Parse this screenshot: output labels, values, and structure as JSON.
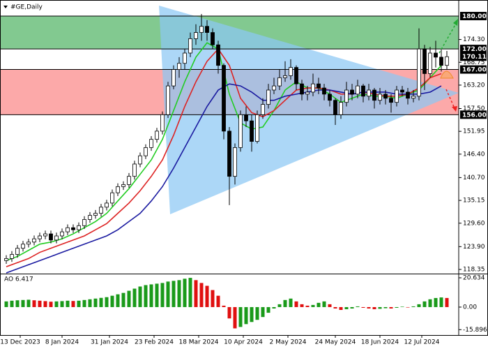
{
  "chart_data": {
    "type": "candlestick",
    "title": "#GE,Daily",
    "x": [
      0,
      2,
      4,
      6,
      8,
      10,
      12,
      14,
      16,
      18,
      20,
      22,
      24,
      26,
      28,
      30,
      32,
      34,
      36,
      38,
      40,
      42,
      44,
      46,
      48,
      50,
      52,
      54,
      56,
      58,
      60,
      62,
      64,
      66,
      68,
      70,
      72,
      74,
      76,
      78,
      80,
      82,
      84,
      86,
      88,
      90,
      92,
      94,
      96,
      98,
      100,
      102,
      104,
      106,
      108,
      110,
      112,
      114,
      116,
      118,
      120,
      122,
      124,
      126,
      128,
      130,
      132,
      134,
      136,
      138,
      140,
      142,
      144,
      146,
      148,
      150,
      152,
      154,
      156,
      158
    ],
    "open": [
      120.5,
      121,
      122,
      123.5,
      124.5,
      125,
      125.8,
      126.5,
      127,
      125.5,
      126.5,
      127.5,
      128.5,
      128,
      129,
      130.5,
      131.5,
      132,
      133.5,
      134.5,
      137,
      138.5,
      139,
      141,
      144,
      146,
      148,
      150,
      152,
      156,
      163,
      167,
      168.5,
      171,
      174.5,
      176,
      177.5,
      176,
      173,
      168,
      152,
      141,
      148,
      156,
      154.5,
      149.5,
      156,
      158.5,
      162,
      163,
      165,
      165.5,
      167.5,
      163.5,
      161,
      161.5,
      163.5,
      162.5,
      161,
      159.5,
      156,
      159,
      162,
      161,
      163,
      160.5,
      162,
      159.5,
      161,
      160,
      159,
      162,
      161.5,
      160,
      160.5,
      172,
      166,
      171,
      170,
      168
    ],
    "high": [
      121.8,
      122.8,
      124.3,
      125.3,
      125.8,
      126.6,
      127.3,
      127.8,
      127.8,
      127.3,
      128.3,
      129.3,
      129.3,
      129.8,
      131.3,
      132.3,
      132.8,
      134.3,
      135.3,
      137.8,
      139.3,
      139.8,
      141.8,
      144.8,
      146.8,
      148.8,
      150.8,
      152.8,
      156.8,
      164,
      168,
      170,
      172,
      176,
      178,
      180.5,
      179,
      177,
      174,
      168.5,
      153,
      149,
      157,
      158,
      156,
      157,
      160,
      163.5,
      165,
      167,
      169,
      169.5,
      168,
      164.5,
      163,
      166,
      165,
      163.5,
      162,
      160,
      160.5,
      164,
      163.5,
      164.5,
      163.5,
      163.5,
      162.5,
      162.5,
      162,
      161,
      163,
      163,
      162.5,
      162,
      177,
      173,
      172.5,
      174,
      172,
      171.5
    ],
    "low": [
      119.7,
      120.2,
      121.2,
      122.7,
      123.7,
      124.2,
      125,
      125.7,
      124.7,
      124.7,
      125.7,
      126.7,
      127.2,
      127.2,
      128.2,
      129.7,
      130.7,
      131.2,
      132.7,
      133.7,
      136.2,
      137.7,
      138.2,
      140.2,
      143.2,
      145.2,
      147.2,
      149.2,
      151.2,
      155.2,
      162.2,
      165,
      167,
      170,
      173,
      174,
      174,
      172,
      166,
      150,
      134,
      139,
      147,
      153,
      147,
      149,
      155,
      157.5,
      161,
      162,
      164,
      164.5,
      162,
      159.5,
      159.5,
      160.5,
      161,
      159.5,
      158,
      153.5,
      155,
      158,
      159.5,
      160,
      159,
      159.5,
      157.5,
      158.5,
      158.5,
      156.5,
      158,
      160.5,
      158.5,
      159,
      159.5,
      162,
      165,
      167.5,
      166.5,
      167
    ],
    "close": [
      121,
      122,
      123.5,
      124.5,
      125,
      125.8,
      126.5,
      127,
      125.5,
      126.5,
      127.5,
      128.5,
      128,
      129,
      130.5,
      131.5,
      132,
      133.5,
      134.5,
      137,
      138.5,
      139,
      141,
      144,
      146,
      148,
      150,
      152,
      156,
      163,
      167,
      168.5,
      171,
      174.5,
      176,
      177.5,
      176,
      173,
      168,
      152,
      141,
      148,
      156,
      154.5,
      149.5,
      156,
      158.5,
      162,
      163,
      165,
      165.5,
      167.5,
      163.5,
      161,
      161.5,
      163.5,
      162.5,
      161,
      159.5,
      156,
      159,
      162,
      161,
      163,
      160.5,
      162,
      159.5,
      161,
      160,
      159,
      162,
      161.5,
      160,
      160.5,
      172,
      166,
      171,
      170,
      168,
      170.11
    ],
    "up_color": "#ffffff",
    "down_color": "#000000",
    "xlim": [
      -1,
      161.5
    ],
    "xticks": [
      {
        "value": 5,
        "label": "13 Dec 2023"
      },
      {
        "value": 20,
        "label": "8 Jan 2024"
      },
      {
        "value": 37,
        "label": "31 Jan 2024"
      },
      {
        "value": 53,
        "label": "23 Feb 2024"
      },
      {
        "value": 69,
        "label": "18 Mar 2024"
      },
      {
        "value": 85,
        "label": "10 Apr 2024"
      },
      {
        "value": 101,
        "label": "2 May 2024"
      },
      {
        "value": 118,
        "label": "24 May 2024"
      },
      {
        "value": 134,
        "label": "18 Jun 2024"
      },
      {
        "value": 149,
        "label": "12 Jul 2024"
      }
    ],
    "ylim": [
      117.33,
      183.06
    ],
    "yticks": [
      118.35,
      {
        "value": 123.9,
        "label": "123.90"
      },
      {
        "value": 129.6,
        "label": "129.60"
      },
      135.15,
      {
        "value": 140.7,
        "label": "140.70"
      },
      {
        "value": 146.4,
        "label": "146.40"
      },
      151.95,
      {
        "value": 157.5,
        "label": "157.50"
      },
      {
        "value": 163.2,
        "label": "163.20"
      },
      168.75,
      {
        "value": 174.3,
        "label": "174.30"
      }
    ],
    "levels": [
      {
        "value": 180,
        "label": "180.00"
      },
      {
        "value": 172,
        "label": "172.00"
      },
      {
        "value": 167,
        "label": "167.00"
      },
      {
        "value": 156,
        "label": "156.00"
      }
    ],
    "zones": [
      {
        "from": 172,
        "to": 180,
        "color": "#6cbf7c"
      },
      {
        "from": 156,
        "to": 167,
        "color": "#fb9a9a"
      }
    ],
    "moving_averages": {
      "x": [
        0,
        4,
        8,
        12,
        16,
        20,
        24,
        28,
        32,
        36,
        40,
        44,
        48,
        52,
        56,
        60,
        64,
        68,
        72,
        76,
        80,
        84,
        88,
        92,
        96,
        100,
        104,
        108,
        112,
        116,
        120,
        124,
        128,
        132,
        136,
        140,
        144,
        148,
        152,
        156
      ],
      "series": [
        {
          "color": "#22cc22",
          "values": [
            120.5,
            121.5,
            123,
            124.5,
            125,
            125.8,
            127,
            128.5,
            130,
            132,
            135,
            138,
            141.5,
            145,
            150,
            157,
            164,
            170,
            173.5,
            172,
            161,
            154,
            152.5,
            153,
            157,
            162,
            164,
            162.5,
            162.5,
            161,
            159,
            160,
            161,
            160.5,
            160.5,
            160,
            161,
            162,
            165,
            168
          ]
        },
        {
          "color": "#dd2222",
          "values": [
            119,
            120,
            121,
            122.5,
            123.5,
            124.5,
            125.5,
            126.5,
            128,
            129.5,
            132,
            134.5,
            137.5,
            141,
            145,
            151,
            158,
            164,
            169,
            172,
            168,
            160,
            156.5,
            155.5,
            157,
            159.5,
            162,
            162.5,
            162.5,
            162,
            161,
            161,
            161.5,
            161,
            160.5,
            160.5,
            161,
            162.5,
            165,
            166
          ]
        },
        {
          "color": "#1a1aa0",
          "values": [
            117.5,
            118.5,
            119.5,
            120.5,
            121.5,
            122.5,
            123.5,
            124.5,
            125.5,
            126.5,
            128,
            130,
            132,
            135,
            138.5,
            143,
            148,
            153,
            158,
            162,
            163.5,
            163,
            161.5,
            159.5,
            159.5,
            160.5,
            161,
            161.5,
            162,
            162,
            161.5,
            161,
            161.5,
            161.5,
            161.5,
            161,
            161,
            161,
            161.5,
            163
          ]
        }
      ]
    },
    "ao": {
      "label": "AO 6.417",
      "values": [
        4,
        4.5,
        4.8,
        5,
        5.2,
        4.8,
        4.5,
        4.2,
        3.8,
        4,
        4.2,
        4.5,
        4.3,
        4.5,
        5,
        5.5,
        6,
        6.5,
        7,
        8,
        9,
        10,
        11.5,
        13,
        14.5,
        15.5,
        16,
        16.5,
        17,
        18,
        18.5,
        19,
        20,
        20.6,
        19,
        17,
        15,
        12,
        8,
        1,
        -8,
        -15,
        -14,
        -12,
        -10.5,
        -9,
        -7,
        -4,
        -1,
        2,
        5,
        6,
        4,
        2,
        1,
        1.5,
        3,
        4,
        2,
        -1,
        -2,
        -1.5,
        -1,
        0.5,
        -0.5,
        -1,
        -1.5,
        -1.2,
        -0.8,
        -1,
        -0.5,
        0.3,
        -0.3,
        0.5,
        2,
        4,
        5.5,
        6.4,
        6.8,
        6.417
      ],
      "up_color": "#1a9a1a",
      "down_color": "#e01010",
      "ylim": [
        -19.7,
        23.1
      ],
      "yticks": [
        20.634,
        {
          "value": 0,
          "label": "0.00"
        },
        -15.896
      ]
    }
  }
}
